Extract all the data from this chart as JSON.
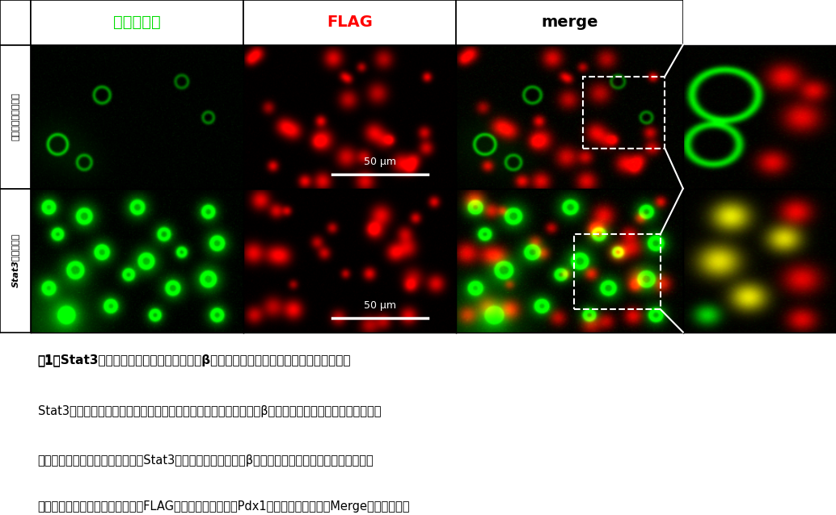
{
  "background_color": "#ffffff",
  "row_labels": [
    "コントロールマウス",
    "Stat3欠損マウス"
  ],
  "col_headers": [
    "インスリン",
    "FLAG",
    "merge"
  ],
  "col_header_colors": [
    "#00dd00",
    "#ff0000",
    "#000000"
  ],
  "col_header_bold": [
    false,
    true,
    true
  ],
  "scale_bar_text": "50 μm",
  "caption_title_prefix": "図1　",
  "caption_title_main": "Stat3欠失マウスでは膜膚房細胞からβ細胞へのリプログラミングが尢進している",
  "caption_body_line1": "Stat3欠失マウス（下段）では対照マウス（上段）と比較して新生β細胞数が増加している。また拡大図",
  "caption_body_line2": "（下段右端）にみられるように、Stat3欠失マウスでは数個のβ細胞が一塡となった膜島様構造が散見",
  "caption_body_line3": "される。　緑：インスリン、赤：FLAG（外因性に転写因子Pdx1を発現した細胞）、Merge：重ね合わせ"
}
